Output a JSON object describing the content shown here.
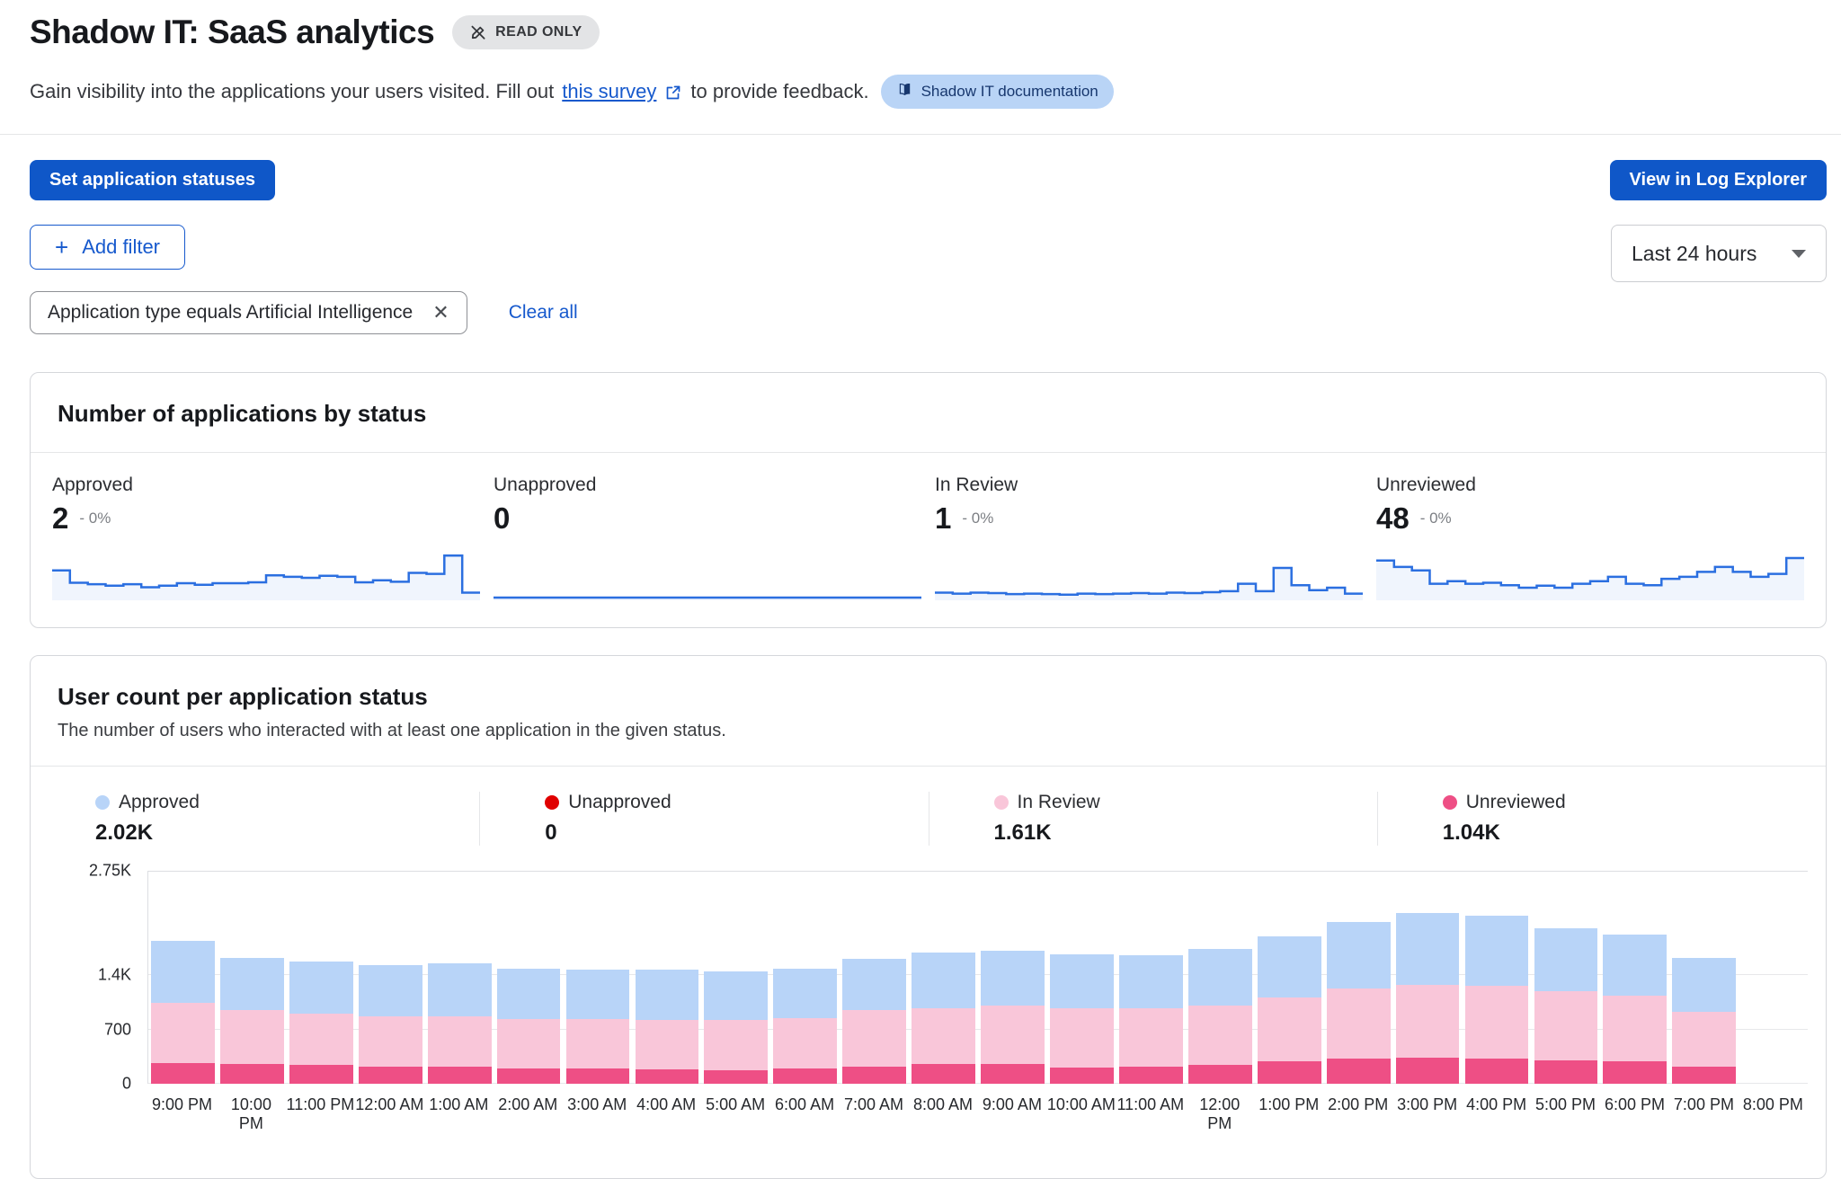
{
  "page": {
    "title": "Shadow IT: SaaS analytics",
    "read_only_badge": "READ ONLY",
    "description_part1": "Gain visibility into the applications your users visited.  Fill out",
    "survey_link": "this survey",
    "description_part2": "to provide feedback.",
    "doc_badge": "Shadow IT documentation"
  },
  "toolbar": {
    "set_statuses_label": "Set application statuses",
    "view_log_explorer_label": "View in Log Explorer",
    "add_filter_label": "Add filter",
    "time_range_value": "Last 24 hours",
    "filter_chip": "Application type equals Artificial Intelligence",
    "clear_all_label": "Clear all"
  },
  "applications_card": {
    "title": "Number of applications by status",
    "spark_color": "#2B6FE0",
    "spark_fill": "rgba(43,111,224,0.07)",
    "stats": [
      {
        "label": "Approved",
        "value": "2",
        "delta": "- 0%",
        "spark": [
          0.55,
          0.3,
          0.27,
          0.24,
          0.27,
          0.21,
          0.24,
          0.29,
          0.26,
          0.29,
          0.29,
          0.31,
          0.45,
          0.42,
          0.4,
          0.44,
          0.42,
          0.31,
          0.35,
          0.32,
          0.5,
          0.48,
          0.85,
          0.1
        ]
      },
      {
        "label": "Unapproved",
        "value": "0",
        "delta": "",
        "spark": [
          0,
          0,
          0,
          0,
          0,
          0,
          0,
          0,
          0,
          0,
          0,
          0,
          0,
          0,
          0,
          0,
          0,
          0,
          0,
          0,
          0,
          0,
          0,
          0
        ]
      },
      {
        "label": "In Review",
        "value": "1",
        "delta": "- 0%",
        "spark": [
          0.1,
          0.08,
          0.1,
          0.09,
          0.07,
          0.08,
          0.07,
          0.06,
          0.08,
          0.07,
          0.08,
          0.09,
          0.08,
          0.1,
          0.09,
          0.11,
          0.13,
          0.28,
          0.13,
          0.6,
          0.25,
          0.15,
          0.2,
          0.08
        ]
      },
      {
        "label": "Unreviewed",
        "value": "48",
        "delta": "- 0%",
        "spark": [
          0.75,
          0.62,
          0.55,
          0.28,
          0.33,
          0.28,
          0.3,
          0.25,
          0.2,
          0.24,
          0.2,
          0.28,
          0.33,
          0.42,
          0.28,
          0.25,
          0.38,
          0.42,
          0.52,
          0.62,
          0.52,
          0.42,
          0.48,
          0.8
        ]
      }
    ]
  },
  "users_card": {
    "title": "User count per application status",
    "subtitle": "The number of users who interacted with at least one application in the given status.",
    "legend": [
      {
        "label": "Approved",
        "value": "2.02K",
        "color": "#B8D4F8"
      },
      {
        "label": "Unapproved",
        "value": "0",
        "color": "#E00000"
      },
      {
        "label": "In Review",
        "value": "1.61K",
        "color": "#F9C6D9"
      },
      {
        "label": "Unreviewed",
        "value": "1.04K",
        "color": "#EE4F85"
      }
    ]
  },
  "chart_data": {
    "type": "bar",
    "stacked": true,
    "title": "User count per application status",
    "xlabel": "",
    "ylabel": "",
    "ylim": [
      0,
      2750
    ],
    "grid": true,
    "legend_position": "top",
    "yticks": [
      {
        "label": "2.75K",
        "value": 2750
      },
      {
        "label": "1.4K",
        "value": 1400
      },
      {
        "label": "700",
        "value": 700
      },
      {
        "label": "0",
        "value": 0
      }
    ],
    "categories": [
      "9:00 PM",
      "10:00 PM",
      "11:00 PM",
      "12:00 AM",
      "1:00 AM",
      "2:00 AM",
      "3:00 AM",
      "4:00 AM",
      "5:00 AM",
      "6:00 AM",
      "7:00 AM",
      "8:00 AM",
      "9:00 AM",
      "10:00 AM",
      "11:00 AM",
      "12:00 PM",
      "1:00 PM",
      "2:00 PM",
      "3:00 PM",
      "4:00 PM",
      "5:00 PM",
      "6:00 PM",
      "7:00 PM",
      "8:00 PM"
    ],
    "stack_bottom_to_top": [
      "Unreviewed",
      "In Review",
      "Approved",
      "Unapproved"
    ],
    "series": [
      {
        "name": "Approved",
        "color": "#B8D4F8",
        "values": [
          800,
          680,
          670,
          660,
          690,
          640,
          645,
          650,
          630,
          635,
          665,
          710,
          710,
          705,
          690,
          730,
          790,
          855,
          920,
          905,
          820,
          790,
          690,
          0
        ]
      },
      {
        "name": "Unapproved",
        "color": "#E00000",
        "values": [
          0,
          0,
          0,
          0,
          0,
          0,
          0,
          0,
          0,
          0,
          0,
          0,
          0,
          0,
          0,
          0,
          0,
          0,
          0,
          0,
          0,
          0,
          0,
          0
        ]
      },
      {
        "name": "In Review",
        "color": "#F9C6D9",
        "values": [
          780,
          700,
          670,
          650,
          640,
          640,
          630,
          630,
          640,
          650,
          735,
          725,
          755,
          760,
          755,
          765,
          830,
          905,
          940,
          945,
          890,
          840,
          710,
          0
        ]
      },
      {
        "name": "Unreviewed",
        "color": "#EE4F85",
        "values": [
          270,
          250,
          240,
          220,
          225,
          200,
          200,
          190,
          180,
          195,
          215,
          255,
          255,
          210,
          215,
          245,
          285,
          325,
          340,
          325,
          300,
          295,
          220,
          0
        ]
      }
    ]
  }
}
